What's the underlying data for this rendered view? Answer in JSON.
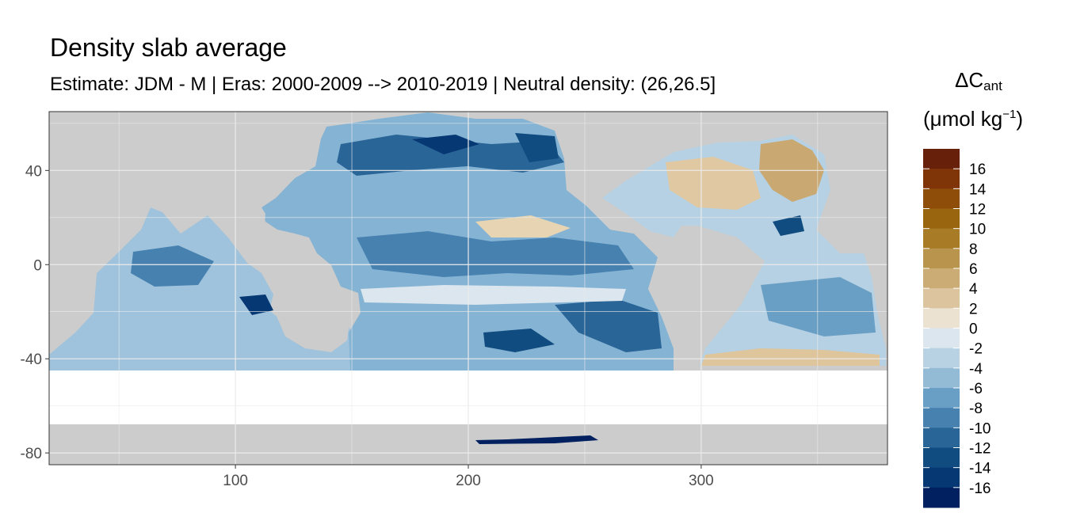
{
  "chart_data": {
    "type": "heatmap",
    "title": "Density slab average",
    "subtitle": "Estimate: JDM - M | Eras: 2000-2009 --> 2010-2019 | Neutral density: (26,26.5]",
    "xlim": [
      20,
      380
    ],
    "ylim": [
      -85,
      65
    ],
    "x_ticks": [
      100,
      200,
      300
    ],
    "x_tick_labels": [
      "100",
      "200",
      "300"
    ],
    "y_ticks": [
      40,
      0,
      -40,
      -80
    ],
    "y_tick_labels": [
      "40",
      "0",
      "-40",
      "-80"
    ],
    "grid": true,
    "legend_position": "right",
    "legend": {
      "title_main": "ΔC",
      "title_sub": "ant",
      "title_units_open": "(μmol kg",
      "title_units_sup": "−1",
      "title_units_close": ")",
      "breaks": [
        16,
        14,
        12,
        10,
        8,
        6,
        4,
        2,
        0,
        -2,
        -4,
        -6,
        -8,
        -10,
        -12,
        -14,
        -16
      ],
      "break_labels": [
        "16",
        "14",
        "12",
        "10",
        "8",
        "6",
        "4",
        "2",
        "0",
        "-2",
        "-4",
        "-6",
        "-8",
        "-10",
        "-12",
        "-14",
        "-16"
      ],
      "colors": [
        "#67200a",
        "#803508",
        "#8f4d0a",
        "#9a650f",
        "#a87b26",
        "#b9944c",
        "#cbac75",
        "#dcc49e",
        "#ebe2d2",
        "#dbe6ee",
        "#b9d2e3",
        "#93bbd6",
        "#6a9fc5",
        "#4681b0",
        "#2a6598",
        "#104c80",
        "#063873",
        "#002060"
      ]
    },
    "colors": {
      "land": "#cccccc",
      "no_data": "#ffffff",
      "panel_border": "#333333",
      "grid": "#ebebeb"
    }
  }
}
